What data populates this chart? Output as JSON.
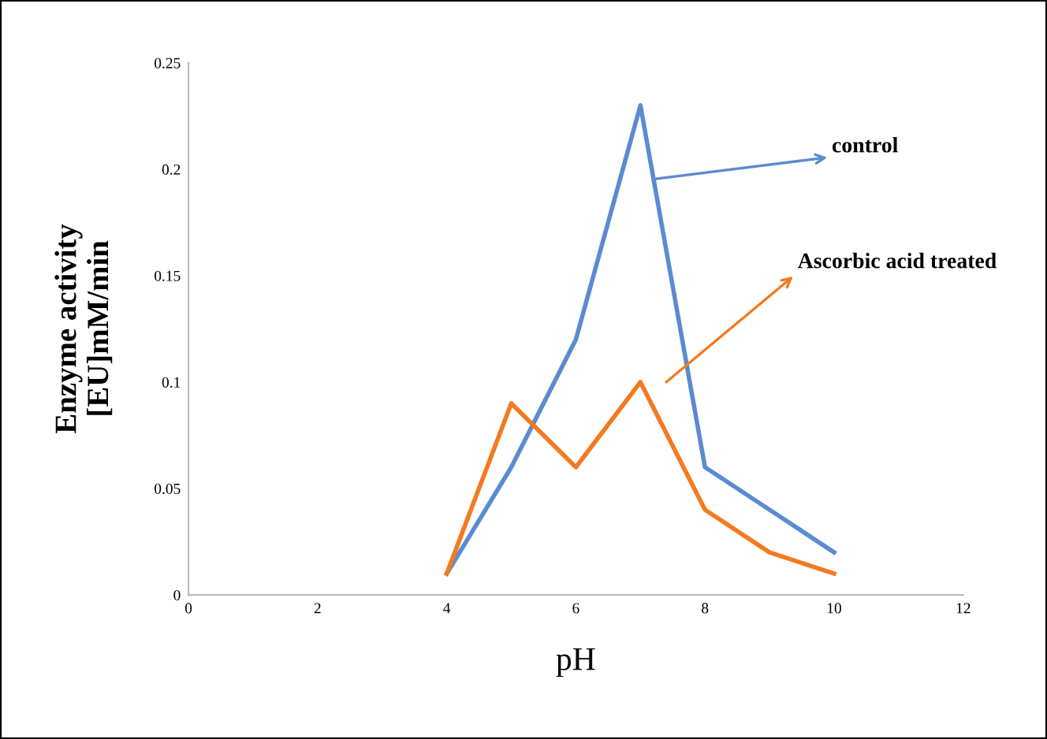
{
  "chart_data": {
    "type": "line",
    "xlabel": "pH",
    "ylabel": "Enzyme activity\n[EU]mM/min",
    "x": [
      4,
      5,
      6,
      7,
      8,
      9,
      10
    ],
    "series": [
      {
        "name": "control",
        "color": "#5b8bd0",
        "values": [
          0.01,
          0.06,
          0.12,
          0.23,
          0.06,
          0.04,
          0.02
        ]
      },
      {
        "name": "Ascorbic acid treated",
        "color": "#f47a20",
        "values": [
          0.01,
          0.09,
          0.06,
          0.1,
          0.04,
          0.02,
          0.01
        ]
      }
    ],
    "xlim": [
      0,
      12
    ],
    "xticks": [
      0,
      2,
      4,
      6,
      8,
      10,
      12
    ],
    "ylim": [
      0,
      0.25
    ],
    "yticks": [
      0,
      0.05,
      0.1,
      0.15,
      0.2,
      0.25
    ],
    "grid": false,
    "legend": "right",
    "marker": "none",
    "line_style": "solid"
  }
}
